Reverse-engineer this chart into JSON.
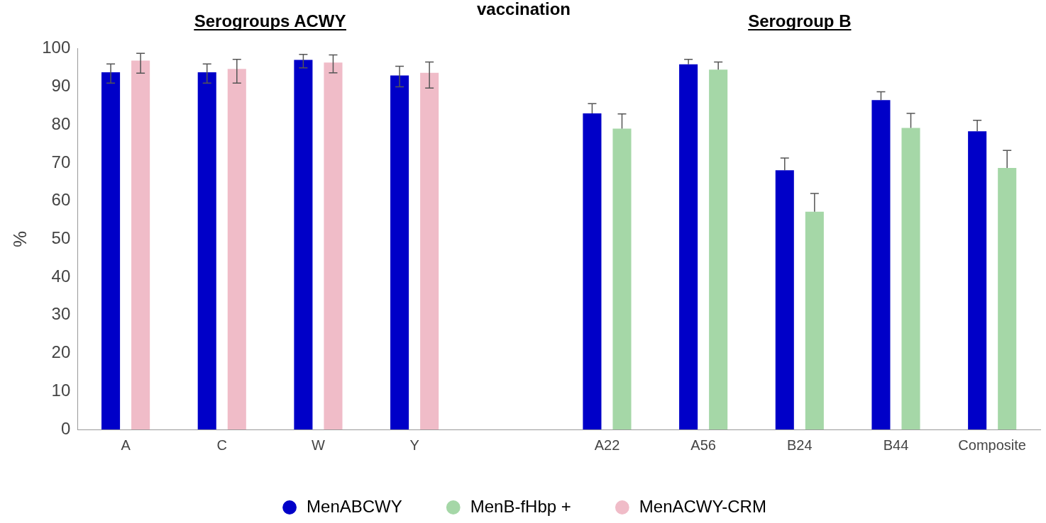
{
  "chart_data": {
    "type": "bar",
    "title": "vaccination",
    "ylabel": "%",
    "annotations": [
      "Serogroups ACWY",
      "Serogroup B"
    ],
    "categories": [
      "A",
      "C",
      "W",
      "Y",
      null,
      "A22",
      "A56",
      "B24",
      "B44",
      "Composite"
    ],
    "series": [
      {
        "name": "MenABCWY",
        "color": "#0000c8",
        "values": [
          93.8,
          93.8,
          97.1,
          93,
          null,
          83,
          95.9,
          68.1,
          86.5,
          78.3
        ],
        "errors": [
          [
            91,
            96
          ],
          [
            91,
            96
          ],
          [
            95,
            98.5
          ],
          [
            90,
            95.4
          ],
          null,
          [
            83,
            85.6
          ],
          [
            95.9,
            97.2
          ],
          [
            68.1,
            71.3
          ],
          [
            86.5,
            88.7
          ],
          [
            78.3,
            81.2
          ]
        ]
      },
      {
        "name": "MenB-fHbp +",
        "color": "#a5d7a7",
        "values": [
          null,
          null,
          null,
          null,
          null,
          79,
          94.5,
          57.2,
          79.2,
          68.7
        ],
        "errors": [
          null,
          null,
          null,
          null,
          null,
          [
            79,
            82.9
          ],
          [
            94.5,
            96.5
          ],
          [
            57.2,
            62
          ],
          [
            79.2,
            83
          ],
          [
            68.7,
            73.3
          ]
        ]
      },
      {
        "name": "MenACWY-CRM",
        "color": "#f0bcc8",
        "values": [
          96.9,
          94.7,
          96.4,
          93.7,
          null,
          null,
          null,
          null,
          null,
          null
        ],
        "errors": [
          [
            93.6,
            98.8
          ],
          [
            91,
            97.2
          ],
          [
            93.7,
            98.4
          ],
          [
            89.7,
            96.5
          ],
          null,
          null,
          null,
          null,
          null,
          null
        ]
      }
    ],
    "ylim": [
      0,
      100
    ],
    "yticks": [
      0,
      10,
      20,
      30,
      40,
      50,
      60,
      70,
      80,
      90,
      100
    ],
    "grid": false,
    "legend": "bottom"
  }
}
